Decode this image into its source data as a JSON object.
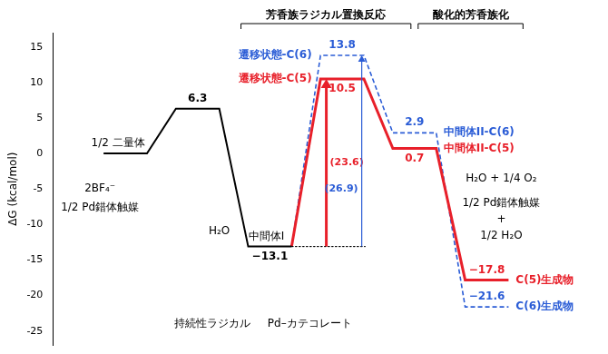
{
  "chart_data": {
    "type": "line",
    "headers": [
      "芳香族ラジカル置換反応",
      "酸化的芳香族化"
    ],
    "y_label": "ΔG (kcal/mol)",
    "categories": [
      null,
      null,
      null,
      null,
      null,
      null
    ],
    "ylim": [
      -27,
      17
    ],
    "yticks": [
      -25,
      -20,
      -15,
      -10,
      -5,
      0,
      5,
      10,
      15
    ],
    "grid": false,
    "tick_labels": "y",
    "data_labels": true,
    "series": [
      {
        "color": "#000000",
        "line_style": "solid",
        "values": [
          0,
          6.3,
          -13.1,
          null,
          null,
          null
        ],
        "value_labels": [
          null,
          "6.3",
          "−13.1",
          null,
          null,
          null
        ],
        "point_labels": [
          "1/2 二量体",
          null,
          "中間体I",
          null,
          null,
          null
        ]
      },
      {
        "color": "#e8202a",
        "line_style": "solid",
        "values": [
          null,
          null,
          -13.1,
          10.5,
          0.7,
          -17.8
        ],
        "value_labels": [
          null,
          null,
          null,
          "10.5",
          "0.7",
          "−17.8"
        ],
        "point_labels": [
          null,
          null,
          null,
          "遷移状態-C(5)",
          "中間体II-C(5)",
          "C(5)生成物"
        ],
        "barrier": 23.6,
        "barrier_label": "(23.6)"
      },
      {
        "color": "#2a5cd6",
        "line_style": "dashed",
        "values": [
          null,
          null,
          -13.1,
          13.8,
          2.9,
          -21.6
        ],
        "value_labels": [
          null,
          null,
          null,
          "13.8",
          "2.9",
          "−21.6"
        ],
        "point_labels": [
          null,
          null,
          null,
          "遷移状態-C(6)",
          "中間体II-C(6)",
          "C(6)生成物"
        ],
        "barrier": 26.9,
        "barrier_label": "(26.9)"
      }
    ],
    "notes": {
      "counter_ion": "2BF₄⁻",
      "catalyst": "1/2 Pd錯体触媒",
      "water_out": "H₂O",
      "radical": "持続性ラジカル",
      "catecholate": "Pd–カテコレート",
      "oxidant": "H₂O + 1/4 O₂",
      "regenerated": [
        "1/2 Pd錯体触媒",
        "+",
        "1/2 H₂O"
      ]
    }
  }
}
